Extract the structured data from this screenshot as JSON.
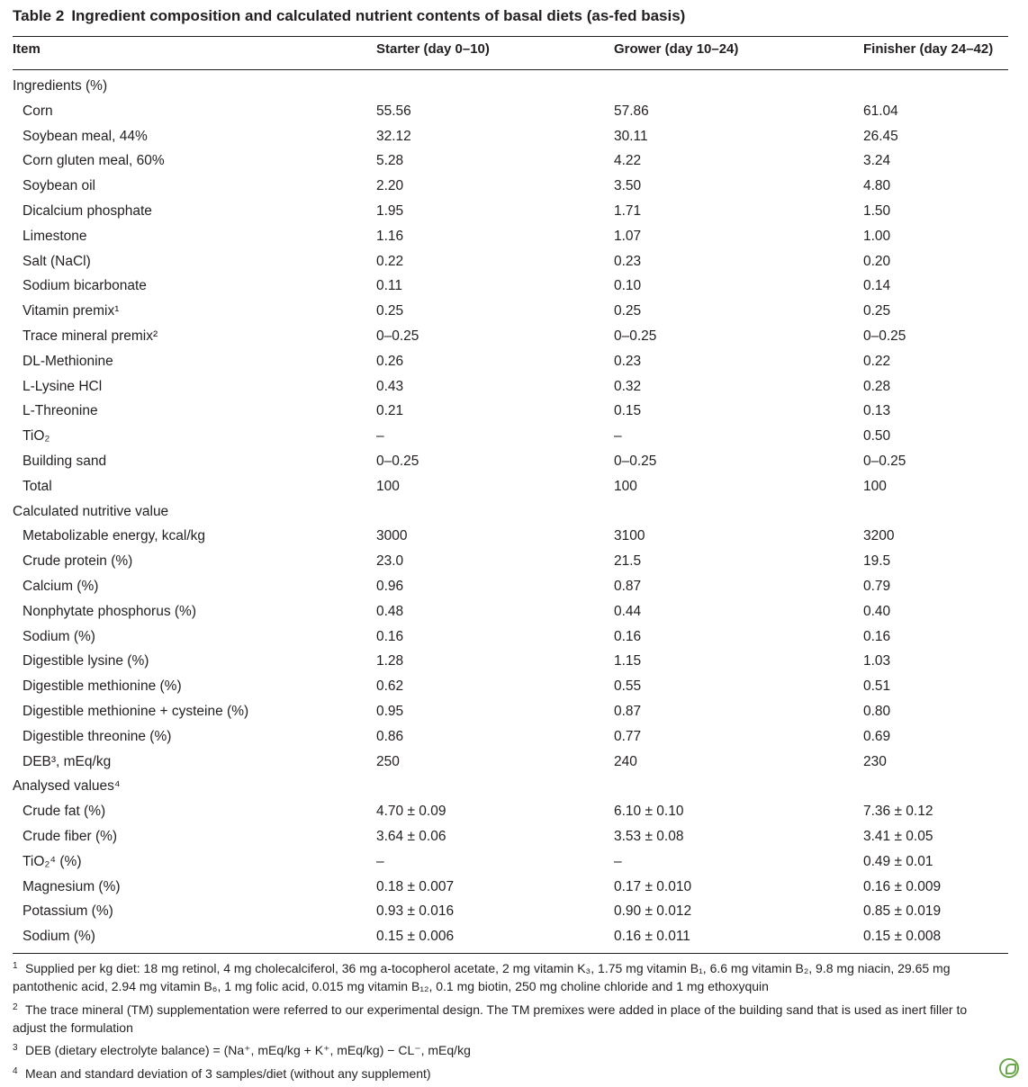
{
  "title": {
    "number": "Table 2",
    "text": "Ingredient composition and calculated nutrient contents of basal diets (as-fed basis)"
  },
  "headers": [
    "Item",
    "Starter (day 0–10)",
    "Grower (day 10–24)",
    "Finisher (day 24–42)"
  ],
  "rows": [
    [
      "Ingredients (%)",
      "",
      "",
      "",
      "section"
    ],
    [
      "Corn",
      "55.56",
      "57.86",
      "61.04"
    ],
    [
      "Soybean meal, 44%",
      "32.12",
      "30.11",
      "26.45"
    ],
    [
      "Corn gluten meal, 60%",
      "5.28",
      "4.22",
      "3.24"
    ],
    [
      "Soybean oil",
      "2.20",
      "3.50",
      "4.80"
    ],
    [
      "Dicalcium phosphate",
      "1.95",
      "1.71",
      "1.50"
    ],
    [
      "Limestone",
      "1.16",
      "1.07",
      "1.00"
    ],
    [
      "Salt (NaCl)",
      "0.22",
      "0.23",
      "0.20"
    ],
    [
      "Sodium bicarbonate",
      "0.11",
      "0.10",
      "0.14"
    ],
    [
      "Vitamin premix¹",
      "0.25",
      "0.25",
      "0.25"
    ],
    [
      "Trace mineral premix²",
      "0–0.25",
      "0–0.25",
      "0–0.25"
    ],
    [
      "DL-Methionine",
      "0.26",
      "0.23",
      "0.22"
    ],
    [
      "L-Lysine HCl",
      "0.43",
      "0.32",
      "0.28"
    ],
    [
      "L-Threonine",
      "0.21",
      "0.15",
      "0.13"
    ],
    [
      "TiO₂",
      "–",
      "–",
      "0.50"
    ],
    [
      "Building sand",
      "0–0.25",
      "0–0.25",
      "0–0.25"
    ],
    [
      "Total",
      "100",
      "100",
      "100"
    ],
    [
      "Calculated nutritive value",
      "",
      "",
      "",
      "section"
    ],
    [
      "Metabolizable energy, kcal/kg",
      "3000",
      "3100",
      "3200"
    ],
    [
      "Crude protein (%)",
      "23.0",
      "21.5",
      "19.5"
    ],
    [
      "Calcium (%)",
      "0.96",
      "0.87",
      "0.79"
    ],
    [
      "Nonphytate phosphorus (%)",
      "0.48",
      "0.44",
      "0.40"
    ],
    [
      "Sodium (%)",
      "0.16",
      "0.16",
      "0.16"
    ],
    [
      "Digestible lysine (%)",
      "1.28",
      "1.15",
      "1.03"
    ],
    [
      "Digestible methionine (%)",
      "0.62",
      "0.55",
      "0.51"
    ],
    [
      "Digestible methionine + cysteine (%)",
      "0.95",
      "0.87",
      "0.80"
    ],
    [
      "Digestible threonine (%)",
      "0.86",
      "0.77",
      "0.69"
    ],
    [
      "DEB³, mEq/kg",
      "250",
      "240",
      "230"
    ],
    [
      "Analysed values⁴",
      "",
      "",
      "",
      "section"
    ],
    [
      "Crude fat (%)",
      "4.70 ± 0.09",
      "6.10 ± 0.10",
      "7.36 ± 0.12"
    ],
    [
      "Crude fiber (%)",
      "3.64 ± 0.06",
      "3.53 ± 0.08",
      "3.41 ± 0.05"
    ],
    [
      "TiO₂⁴ (%)",
      "–",
      "–",
      "0.49 ± 0.01"
    ],
    [
      "Magnesium (%)",
      "0.18 ± 0.007",
      "0.17 ± 0.010",
      "0.16 ± 0.009"
    ],
    [
      "Potassium (%)",
      "0.93 ± 0.016",
      "0.90 ± 0.012",
      "0.85 ± 0.019"
    ],
    [
      "Sodium (%)",
      "0.15 ± 0.006",
      "0.16 ± 0.011",
      "0.15 ± 0.008"
    ]
  ],
  "footnotes": [
    {
      "mark": "1",
      "text": "Supplied per kg diet: 18 mg retinol, 4 mg cholecalciferol, 36 mg a-tocopherol acetate, 2 mg vitamin K₃, 1.75 mg vitamin B₁, 6.6 mg vitamin B₂, 9.8 mg niacin, 29.65 mg pantothenic acid, 2.94 mg vitamin B₆, 1 mg folic acid, 0.015 mg vitamin B₁₂, 0.1 mg biotin, 250 mg choline chloride and 1 mg ethoxyquin"
    },
    {
      "mark": "2",
      "text": "The trace mineral (TM) supplementation were referred to our experimental design. The TM premixes were added in place of the building sand that is used as inert filler to adjust the formulation"
    },
    {
      "mark": "3",
      "text": "DEB (dietary electrolyte balance) = (Na⁺, mEq/kg + K⁺, mEq/kg) − CL⁻, mEq/kg"
    },
    {
      "mark": "4",
      "text": "Mean and standard deviation of 3 samples/diet (without any supplement)"
    }
  ],
  "logo_icon": "journal-leaf-icon"
}
